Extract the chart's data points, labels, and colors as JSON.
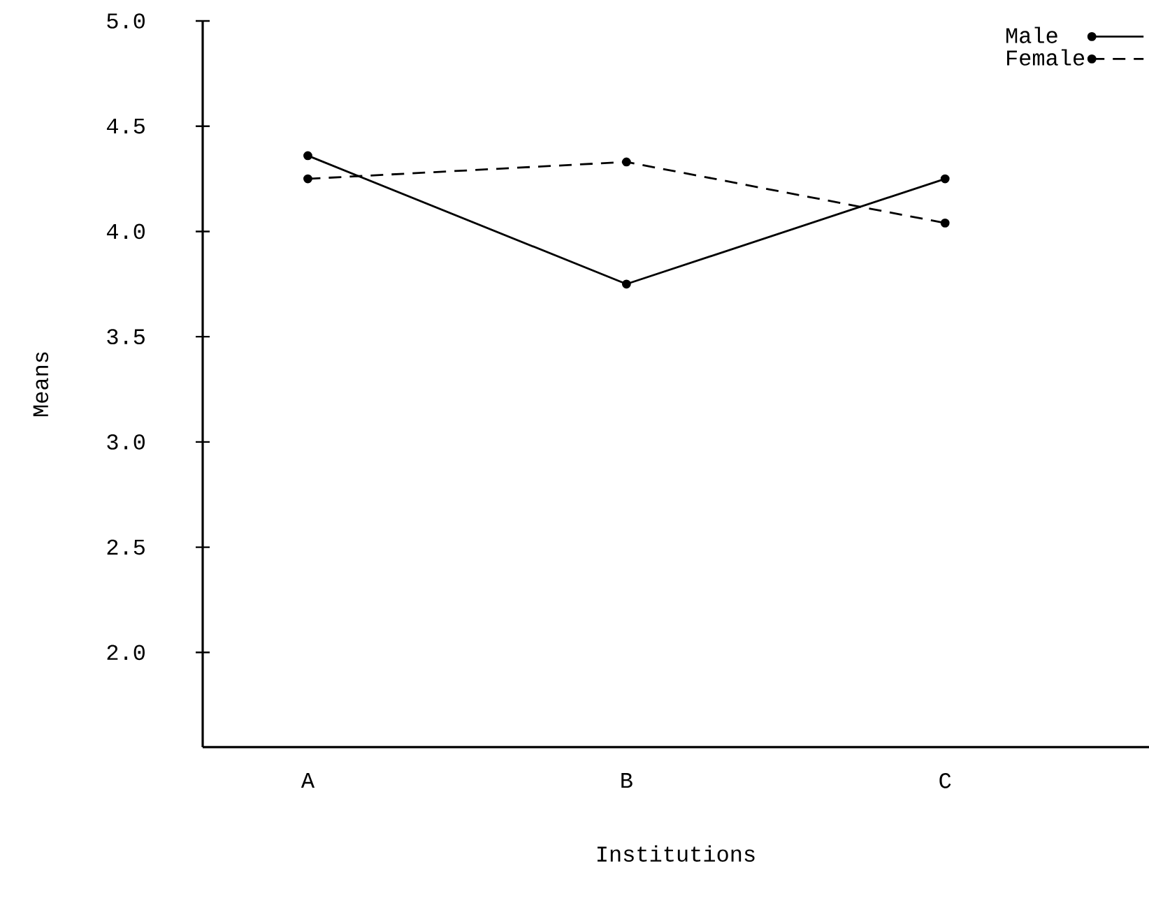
{
  "chart_data": {
    "type": "line",
    "xlabel": "Institutions",
    "ylabel": "Means",
    "categories": [
      "A",
      "B",
      "C"
    ],
    "series": [
      {
        "name": "Male",
        "color": "#000000",
        "line_style": "solid",
        "values": [
          4.36,
          3.75,
          4.25
        ]
      },
      {
        "name": "Female",
        "color": "#000000",
        "line_style": "dashed",
        "values": [
          4.25,
          4.33,
          4.04
        ]
      }
    ],
    "ylim": [
      1.55,
      5.0
    ],
    "yticks": [
      {
        "value": 2,
        "label": "2.0"
      },
      2.5,
      {
        "value": 3,
        "label": "3.0"
      },
      3.5,
      {
        "value": 4,
        "label": "4.0"
      },
      4.5,
      {
        "value": 5,
        "label": "5.0"
      }
    ],
    "marker": "circle",
    "legend": "top right",
    "grid": false
  }
}
